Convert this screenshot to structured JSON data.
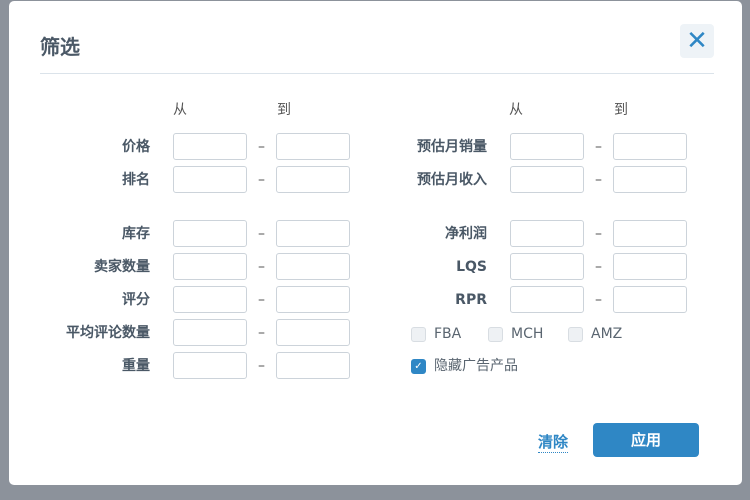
{
  "title": "筛选",
  "close_icon": "close-icon",
  "headers": {
    "from": "从",
    "to": "到"
  },
  "left_fields": [
    {
      "label": "价格",
      "from": "",
      "to": ""
    },
    {
      "label": "排名",
      "from": "",
      "to": ""
    },
    {
      "label": "库存",
      "from": "",
      "to": ""
    },
    {
      "label": "卖家数量",
      "from": "",
      "to": ""
    },
    {
      "label": "评分",
      "from": "",
      "to": ""
    },
    {
      "label": "平均评论数量",
      "from": "",
      "to": ""
    },
    {
      "label": "重量",
      "from": "",
      "to": ""
    }
  ],
  "right_fields": [
    {
      "label": "预估月销量",
      "from": "",
      "to": ""
    },
    {
      "label": "预估月收入",
      "from": "",
      "to": ""
    },
    {
      "label": "净利润",
      "from": "",
      "to": ""
    },
    {
      "label": "LQS",
      "from": "",
      "to": ""
    },
    {
      "label": "RPR",
      "from": "",
      "to": ""
    }
  ],
  "dash": "–",
  "checkboxes": [
    {
      "label": "FBA",
      "checked": false
    },
    {
      "label": "MCH",
      "checked": false
    },
    {
      "label": "AMZ",
      "checked": false
    },
    {
      "label": "隐藏广告产品",
      "checked": true
    }
  ],
  "clear_label": "清除",
  "apply_label": "应用",
  "accent": "#2f87c5"
}
